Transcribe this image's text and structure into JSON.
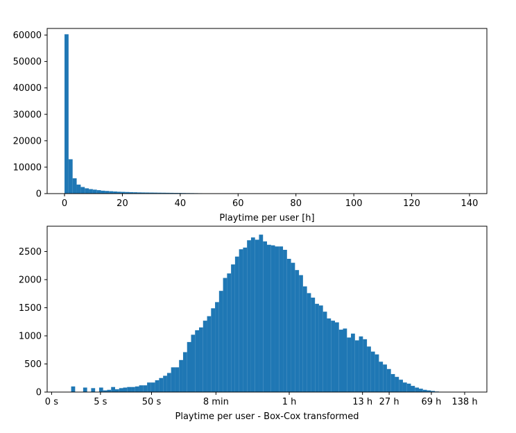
{
  "chart_data": [
    {
      "type": "bar",
      "xlabel": "Playtime per user [h]",
      "ylabel": "",
      "title": "",
      "xlim": [
        -6,
        146
      ],
      "ylim": [
        0,
        62500
      ],
      "xticks": [
        0,
        20,
        40,
        60,
        80,
        100,
        120,
        140
      ],
      "xtick_labels": [
        "0",
        "20",
        "40",
        "60",
        "80",
        "100",
        "120",
        "140"
      ],
      "yticks": [
        0,
        10000,
        20000,
        30000,
        40000,
        50000,
        60000
      ],
      "ytick_labels": [
        "0",
        "10000",
        "20000",
        "30000",
        "40000",
        "50000",
        "60000"
      ],
      "bin_start": 0,
      "bin_width": 1.4,
      "values": [
        60300,
        13000,
        5800,
        3400,
        2500,
        2000,
        1700,
        1500,
        1300,
        1100,
        1000,
        900,
        800,
        700,
        650,
        600,
        550,
        500,
        450,
        420,
        400,
        380,
        360,
        340,
        320,
        300,
        280,
        260,
        240,
        220,
        200,
        180,
        160,
        140,
        120,
        100,
        60,
        40,
        30,
        20,
        15,
        10,
        8,
        6,
        5,
        4,
        3,
        2,
        2,
        2,
        1,
        1,
        1,
        1,
        1,
        1,
        1,
        1,
        1,
        1,
        1,
        1,
        1,
        1,
        1,
        1,
        1,
        1,
        1,
        1,
        1,
        1,
        1,
        1,
        1,
        1,
        1,
        1,
        1,
        1,
        1,
        1,
        1,
        1,
        1,
        1,
        1,
        1,
        1,
        1,
        1,
        1,
        1,
        1,
        1,
        1,
        1,
        1,
        1,
        1
      ],
      "color": "#1f77b4",
      "grid": false
    },
    {
      "type": "bar",
      "xlabel": "Playtime per user - Box-Cox transformed",
      "ylabel": "",
      "title": "",
      "xlim": [
        -0.2,
        19.6
      ],
      "ylim": [
        0,
        2950
      ],
      "xticks": [
        0,
        2.2,
        4.5,
        7.4,
        10.7,
        14.0,
        15.2,
        17.1,
        18.6
      ],
      "xtick_labels": [
        "0 s",
        "5 s",
        "50 s",
        "8 min",
        "1 h",
        "13 h",
        "27 h",
        "69 h",
        "138 h"
      ],
      "yticks": [
        0,
        500,
        1000,
        1500,
        2000,
        2500
      ],
      "ytick_labels": [
        "0",
        "500",
        "1000",
        "1500",
        "2000",
        "2500"
      ],
      "bin_start": 0.7,
      "bin_width": 0.18,
      "values": [
        0,
        100,
        0,
        0,
        80,
        0,
        70,
        0,
        80,
        30,
        40,
        90,
        50,
        70,
        80,
        90,
        90,
        100,
        120,
        120,
        170,
        170,
        210,
        250,
        290,
        340,
        440,
        440,
        570,
        710,
        890,
        1020,
        1100,
        1150,
        1270,
        1350,
        1490,
        1600,
        1800,
        2030,
        2110,
        2270,
        2410,
        2540,
        2570,
        2700,
        2750,
        2710,
        2800,
        2680,
        2620,
        2610,
        2590,
        2590,
        2530,
        2370,
        2300,
        2170,
        2080,
        1880,
        1760,
        1680,
        1570,
        1540,
        1430,
        1310,
        1270,
        1240,
        1110,
        1130,
        970,
        1040,
        920,
        990,
        940,
        810,
        720,
        670,
        540,
        490,
        410,
        320,
        270,
        220,
        170,
        150,
        110,
        80,
        60,
        40,
        30,
        20,
        10,
        5,
        5,
        3,
        2,
        1,
        1,
        1,
        1,
        1
      ],
      "color": "#1f77b4",
      "grid": false
    }
  ]
}
